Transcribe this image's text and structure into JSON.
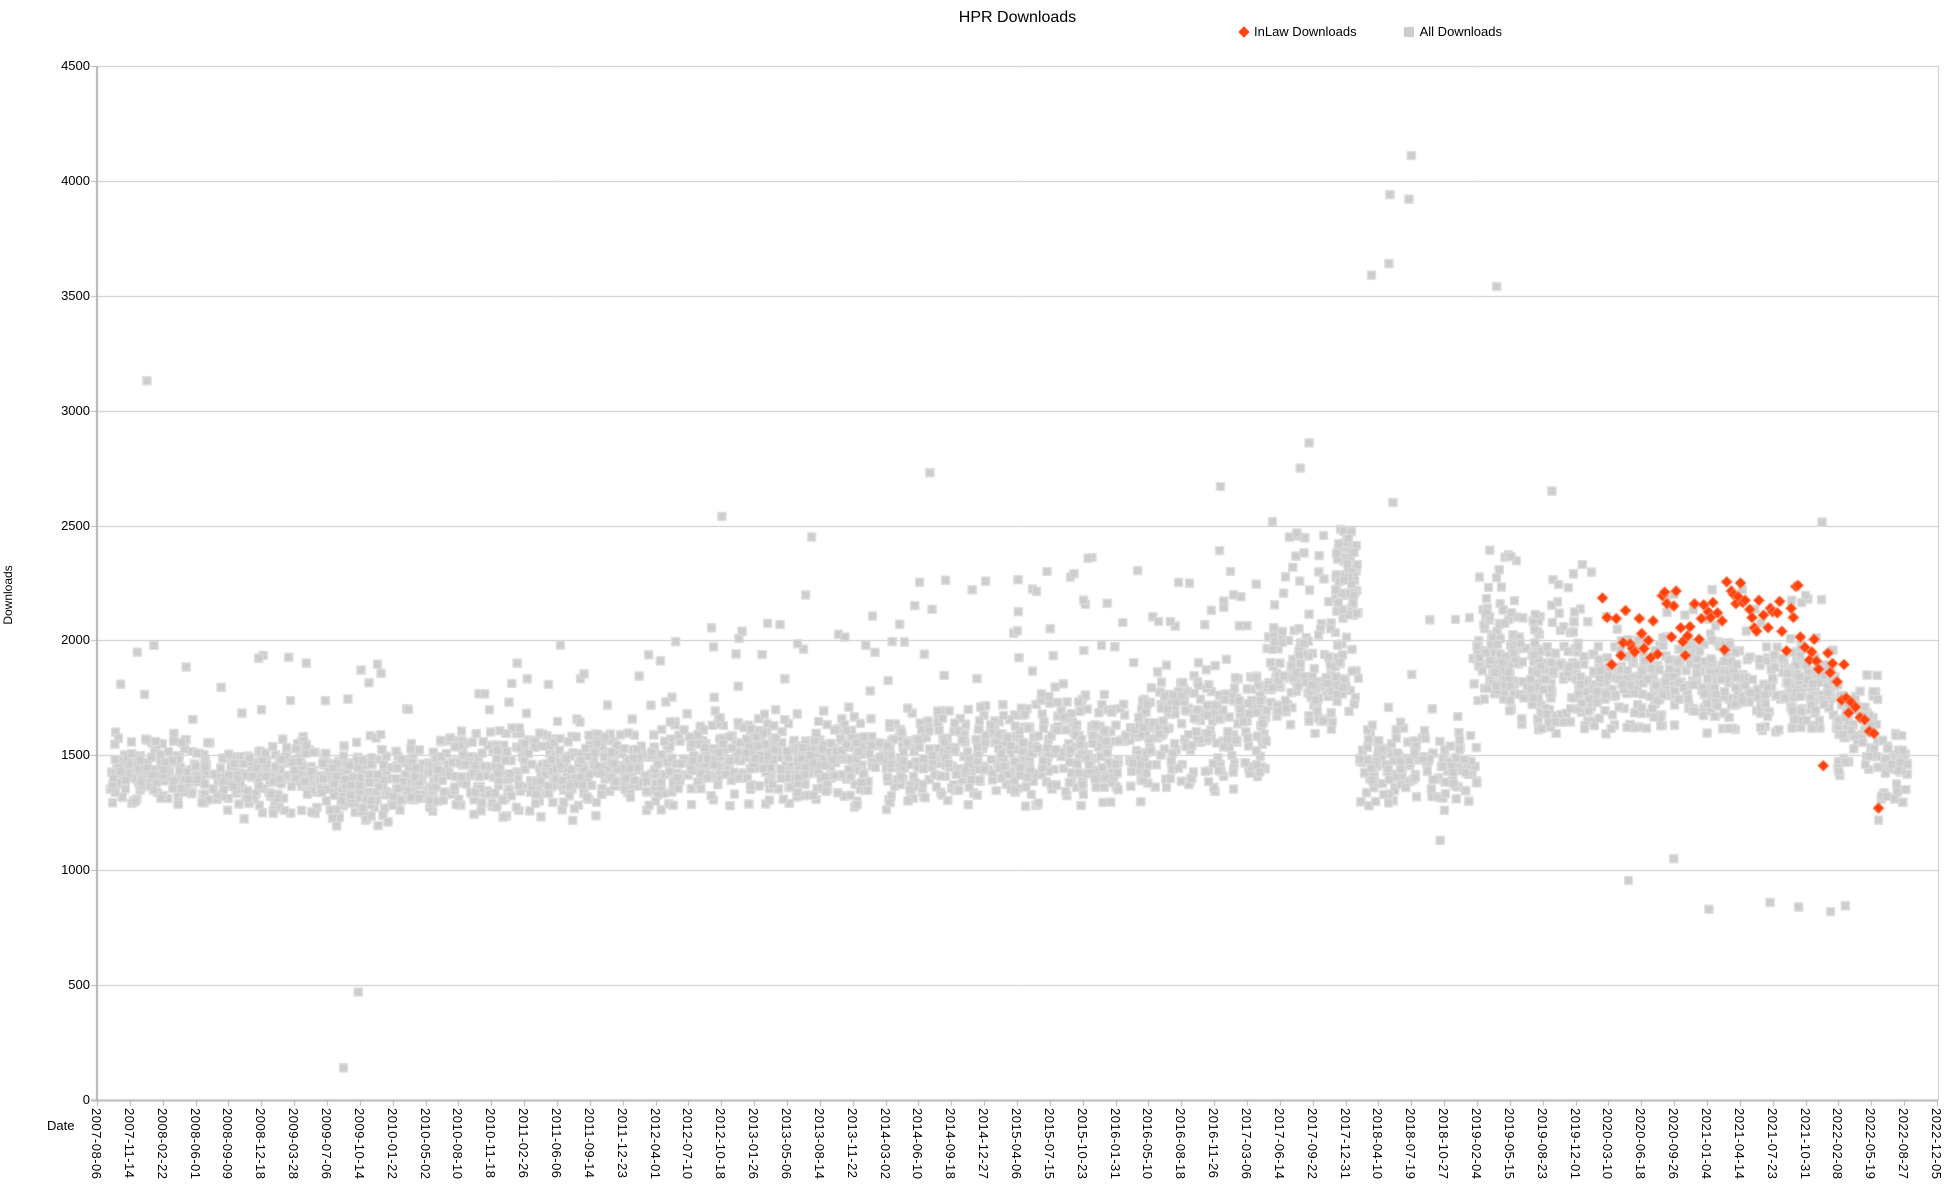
{
  "chart_data": {
    "type": "scatter",
    "title": "HPR Downloads",
    "xlabel": "Date",
    "ylabel": "Downloads",
    "ylim": [
      0,
      4500
    ],
    "y_ticks": [
      0,
      500,
      1000,
      1500,
      2000,
      2500,
      3000,
      3500,
      4000,
      4500
    ],
    "x_epoch": "2007-08-06",
    "x_tick_interval_days": 100,
    "x_ticks": [
      "2007-08-06",
      "2007-11-14",
      "2008-02-22",
      "2008-06-01",
      "2008-09-09",
      "2008-12-18",
      "2009-03-28",
      "2009-07-06",
      "2009-10-14",
      "2010-01-22",
      "2010-05-02",
      "2010-08-10",
      "2010-11-18",
      "2011-02-26",
      "2011-06-06",
      "2011-09-14",
      "2011-12-23",
      "2012-04-01",
      "2012-07-10",
      "2012-10-18",
      "2013-01-26",
      "2013-05-06",
      "2013-08-14",
      "2013-11-22",
      "2014-03-02",
      "2014-06-10",
      "2014-09-18",
      "2014-12-27",
      "2015-04-06",
      "2015-07-15",
      "2015-10-23",
      "2016-01-31",
      "2016-05-10",
      "2016-08-18",
      "2016-11-26",
      "2017-03-06",
      "2017-06-14",
      "2017-09-22",
      "2017-12-31",
      "2018-04-10",
      "2018-07-19",
      "2018-10-27",
      "2019-02-04",
      "2019-05-15",
      "2019-08-23",
      "2019-12-01",
      "2020-03-10",
      "2020-06-18",
      "2020-09-26",
      "2021-01-04",
      "2021-04-14",
      "2021-07-23",
      "2021-10-31",
      "2022-02-08",
      "2022-05-19",
      "2022-08-27",
      "2022-12-05"
    ],
    "grid": true,
    "grid_color": "#c9c9c9",
    "axis_color": "#b3b3b3",
    "legend_position": "top",
    "seed": 20220806,
    "series": [
      {
        "name": "InLaw Downloads",
        "marker": "diamond",
        "color": "#ff420e",
        "edge_color": "#ff9066",
        "points": [
          [
            "2020-02-21",
            2185
          ],
          [
            "2020-03-06",
            2100
          ],
          [
            "2020-03-20",
            1895
          ],
          [
            "2020-04-03",
            2095
          ],
          [
            "2020-04-17",
            1935
          ],
          [
            "2020-04-24",
            1990
          ],
          [
            "2020-05-01",
            2130
          ],
          [
            "2020-05-15",
            1985
          ],
          [
            "2020-05-22",
            1965
          ],
          [
            "2020-05-29",
            1950
          ],
          [
            "2020-06-12",
            2095
          ],
          [
            "2020-06-19",
            2030
          ],
          [
            "2020-06-26",
            1965
          ],
          [
            "2020-07-10",
            2000
          ],
          [
            "2020-07-17",
            1925
          ],
          [
            "2020-07-24",
            2085
          ],
          [
            "2020-08-07",
            1940
          ],
          [
            "2020-08-21",
            2195
          ],
          [
            "2020-08-28",
            2210
          ],
          [
            "2020-09-04",
            2160
          ],
          [
            "2020-09-18",
            2015
          ],
          [
            "2020-09-25",
            2150
          ],
          [
            "2020-10-02",
            2215
          ],
          [
            "2020-10-16",
            2055
          ],
          [
            "2020-10-23",
            1995
          ],
          [
            "2020-10-30",
            1935
          ],
          [
            "2020-11-06",
            2020
          ],
          [
            "2020-11-13",
            2060
          ],
          [
            "2020-11-27",
            2160
          ],
          [
            "2020-12-11",
            2005
          ],
          [
            "2020-12-18",
            2095
          ],
          [
            "2020-12-25",
            2155
          ],
          [
            "2021-01-08",
            2125
          ],
          [
            "2021-01-15",
            2100
          ],
          [
            "2021-01-22",
            2165
          ],
          [
            "2021-02-05",
            2120
          ],
          [
            "2021-02-19",
            2085
          ],
          [
            "2021-02-26",
            1960
          ],
          [
            "2021-03-05",
            2255
          ],
          [
            "2021-03-19",
            2215
          ],
          [
            "2021-03-26",
            2200
          ],
          [
            "2021-04-02",
            2160
          ],
          [
            "2021-04-09",
            2190
          ],
          [
            "2021-04-16",
            2250
          ],
          [
            "2021-04-23",
            2165
          ],
          [
            "2021-04-30",
            2175
          ],
          [
            "2021-05-14",
            2135
          ],
          [
            "2021-05-21",
            2100
          ],
          [
            "2021-05-28",
            2055
          ],
          [
            "2021-06-04",
            2040
          ],
          [
            "2021-06-11",
            2175
          ],
          [
            "2021-06-25",
            2110
          ],
          [
            "2021-07-09",
            2055
          ],
          [
            "2021-07-16",
            2140
          ],
          [
            "2021-07-23",
            2125
          ],
          [
            "2021-08-06",
            2120
          ],
          [
            "2021-08-13",
            2170
          ],
          [
            "2021-08-20",
            2040
          ],
          [
            "2021-09-03",
            1955
          ],
          [
            "2021-09-17",
            2140
          ],
          [
            "2021-09-24",
            2100
          ],
          [
            "2021-10-01",
            2235
          ],
          [
            "2021-10-08",
            2240
          ],
          [
            "2021-10-15",
            2015
          ],
          [
            "2021-10-29",
            1970
          ],
          [
            "2021-11-12",
            1915
          ],
          [
            "2021-11-19",
            1950
          ],
          [
            "2021-11-26",
            2005
          ],
          [
            "2021-12-03",
            1910
          ],
          [
            "2021-12-10",
            1875
          ],
          [
            "2021-12-24",
            1455
          ],
          [
            "2022-01-07",
            1945
          ],
          [
            "2022-01-14",
            1860
          ],
          [
            "2022-01-21",
            1900
          ],
          [
            "2022-02-04",
            1820
          ],
          [
            "2022-02-18",
            1740
          ],
          [
            "2022-02-25",
            1895
          ],
          [
            "2022-03-04",
            1750
          ],
          [
            "2022-03-11",
            1685
          ],
          [
            "2022-03-18",
            1732
          ],
          [
            "2022-04-01",
            1710
          ],
          [
            "2022-04-15",
            1665
          ],
          [
            "2022-04-29",
            1655
          ],
          [
            "2022-05-13",
            1605
          ],
          [
            "2022-05-27",
            1595
          ],
          [
            "2022-06-10",
            1270
          ]
        ]
      },
      {
        "name": "All Downloads",
        "marker": "square",
        "color": "#cdcdcd",
        "edge_color": "#dfdfdf",
        "band_segments": [
          {
            "from": "2007-09-15",
            "to": "2008-06-01",
            "n": 150,
            "lo": 1250,
            "hi": 1620,
            "tail_n": 6,
            "tail_lo": 1650,
            "tail_hi": 2000
          },
          {
            "from": "2008-06-01",
            "to": "2009-06-06",
            "n": 215,
            "lo": 1200,
            "hi": 1600,
            "tail_n": 8,
            "tail_lo": 1620,
            "tail_hi": 1950
          },
          {
            "from": "2009-06-06",
            "to": "2010-06-01",
            "n": 215,
            "lo": 1180,
            "hi": 1600,
            "tail_n": 8,
            "tail_lo": 1620,
            "tail_hi": 1900
          },
          {
            "from": "2010-06-01",
            "to": "2011-06-06",
            "n": 215,
            "lo": 1200,
            "hi": 1640,
            "tail_n": 9,
            "tail_lo": 1660,
            "tail_hi": 1920
          },
          {
            "from": "2011-06-06",
            "to": "2012-05-31",
            "n": 215,
            "lo": 1200,
            "hi": 1680,
            "tail_n": 10,
            "tail_lo": 1700,
            "tail_hi": 1980
          },
          {
            "from": "2012-05-31",
            "to": "2013-06-05",
            "n": 220,
            "lo": 1230,
            "hi": 1720,
            "tail_n": 12,
            "tail_lo": 1740,
            "tail_hi": 2150
          },
          {
            "from": "2013-06-05",
            "to": "2014-06-10",
            "n": 220,
            "lo": 1240,
            "hi": 1740,
            "tail_n": 14,
            "tail_lo": 1760,
            "tail_hi": 2200
          },
          {
            "from": "2014-06-10",
            "to": "2015-06-05",
            "n": 220,
            "lo": 1250,
            "hi": 1780,
            "tail_n": 16,
            "tail_lo": 1800,
            "tail_hi": 2300
          },
          {
            "from": "2015-06-05",
            "to": "2016-06-09",
            "n": 220,
            "lo": 1260,
            "hi": 1840,
            "tail_n": 18,
            "tail_lo": 1860,
            "tail_hi": 2380
          },
          {
            "from": "2016-06-09",
            "to": "2017-05-05",
            "n": 195,
            "lo": 1300,
            "hi": 1950,
            "tail_n": 16,
            "tail_lo": 1970,
            "tail_hi": 2480
          },
          {
            "from": "2017-05-05",
            "to": "2017-12-01",
            "n": 130,
            "lo": 1550,
            "hi": 2150,
            "tail_n": 18,
            "tail_lo": 2150,
            "tail_hi": 2520
          },
          {
            "from": "2017-12-01",
            "to": "2018-02-09",
            "n": 70,
            "lo": 2050,
            "hi": 2500,
            "tail_n": 0,
            "tail_lo": 0,
            "tail_hi": 0
          },
          {
            "from": "2017-12-01",
            "to": "2018-02-09",
            "n": 25,
            "lo": 1600,
            "hi": 2050,
            "tail_n": 0,
            "tail_lo": 0,
            "tail_hi": 0
          },
          {
            "from": "2018-02-09",
            "to": "2019-02-04",
            "n": 150,
            "lo": 1230,
            "hi": 1680,
            "tail_n": 8,
            "tail_lo": 1700,
            "tail_hi": 2100
          },
          {
            "from": "2019-02-04",
            "to": "2019-06-14",
            "n": 110,
            "lo": 1650,
            "hi": 2200,
            "tail_n": 10,
            "tail_lo": 2200,
            "tail_hi": 2400
          },
          {
            "from": "2019-06-14",
            "to": "2020-01-30",
            "n": 150,
            "lo": 1550,
            "hi": 2150,
            "tail_n": 8,
            "tail_lo": 2150,
            "tail_hi": 2350
          },
          {
            "from": "2020-01-30",
            "to": "2021-02-13",
            "n": 230,
            "lo": 1580,
            "hi": 2080,
            "tail_n": 8,
            "tail_lo": 2090,
            "tail_hi": 2230
          },
          {
            "from": "2021-02-13",
            "to": "2022-01-29",
            "n": 215,
            "lo": 1560,
            "hi": 2060,
            "tail_n": 8,
            "tail_lo": 2070,
            "tail_hi": 2230
          },
          {
            "from": "2022-01-29",
            "to": "2022-06-08",
            "n": 80,
            "lo": 1380,
            "hi": 1880,
            "tail_n": 0,
            "tail_lo": 0,
            "tail_hi": 0
          },
          {
            "from": "2022-06-08",
            "to": "2022-09-06",
            "n": 45,
            "lo": 1250,
            "hi": 1650,
            "tail_n": 0,
            "tail_lo": 0,
            "tail_hi": 0
          }
        ],
        "outliers": [
          [
            "2008-01-05",
            3130
          ],
          [
            "2009-08-25",
            140
          ],
          [
            "2009-10-09",
            470
          ],
          [
            "2012-10-20",
            2540
          ],
          [
            "2013-07-20",
            2450
          ],
          [
            "2014-07-15",
            2730
          ],
          [
            "2016-12-15",
            2670
          ],
          [
            "2017-08-15",
            2750
          ],
          [
            "2017-09-11",
            2860
          ],
          [
            "2018-03-20",
            3590
          ],
          [
            "2018-05-12",
            3640
          ],
          [
            "2018-05-15",
            3940
          ],
          [
            "2018-05-24",
            2600
          ],
          [
            "2018-07-12",
            3920
          ],
          [
            "2018-07-19",
            4110
          ],
          [
            "2018-10-15",
            1130
          ],
          [
            "2019-04-05",
            3540
          ],
          [
            "2019-09-20",
            2650
          ],
          [
            "2020-05-10",
            955
          ],
          [
            "2020-09-25",
            1050
          ],
          [
            "2021-01-10",
            830
          ],
          [
            "2021-07-15",
            860
          ],
          [
            "2021-10-10",
            840
          ],
          [
            "2021-12-20",
            2515
          ],
          [
            "2022-01-15",
            820
          ],
          [
            "2022-03-01",
            845
          ],
          [
            "2022-06-10",
            1218
          ]
        ]
      }
    ]
  }
}
